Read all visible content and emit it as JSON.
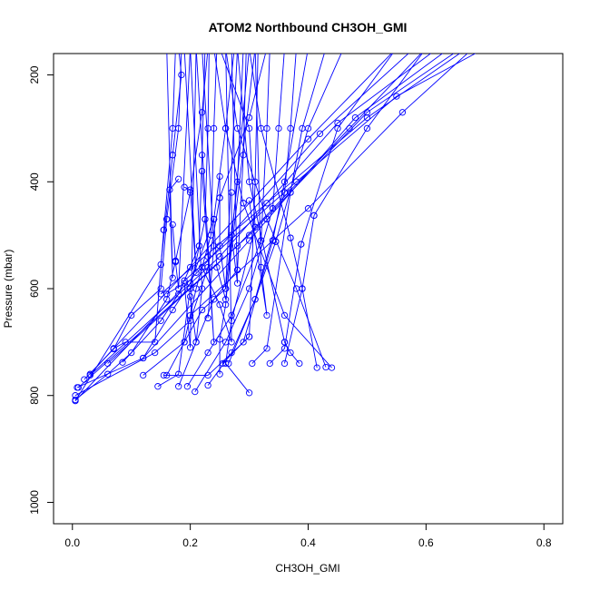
{
  "chart_data": {
    "type": "line",
    "title": "ATOM2 Northbound CH3OH_GMI",
    "xlabel": "CH3OH_GMI",
    "ylabel": "Pressure (mbar)",
    "xlim": [
      -0.032,
      0.832
    ],
    "ylim": [
      1040,
      160
    ],
    "y_reversed": true,
    "x_ticks": [
      0.0,
      0.2,
      0.4,
      0.6,
      0.8
    ],
    "x_tick_labels": [
      "0.0",
      "0.2",
      "0.4",
      "0.6",
      "0.8"
    ],
    "y_ticks": [
      200,
      400,
      600,
      800,
      1000
    ],
    "y_tick_labels": [
      "200",
      "400",
      "600",
      "800",
      "1000"
    ],
    "series_color": "#0000ff",
    "marker": "open-circle",
    "grid": false,
    "legend": "none",
    "profiles": [
      {
        "x": [
          0.005,
          0.15,
          0.17
        ],
        "y": [
          810,
          555,
          350
        ]
      },
      {
        "x": [
          0.17,
          0.185,
          0.18
        ],
        "y": [
          350,
          200,
          150
        ]
      },
      {
        "x": [
          0.005,
          0.06,
          0.1,
          0.16,
          0.175
        ],
        "y": [
          808,
          760,
          720,
          620,
          548
        ]
      },
      {
        "x": [
          0.175,
          0.2,
          0.22,
          0.23
        ],
        "y": [
          548,
          420,
          270,
          150
        ]
      },
      {
        "x": [
          0.008,
          0.12,
          0.17,
          0.2,
          0.24
        ],
        "y": [
          785,
          730,
          640,
          590,
          470
        ]
      },
      {
        "x": [
          0.24,
          0.26,
          0.275
        ],
        "y": [
          470,
          300,
          150
        ]
      },
      {
        "x": [
          0.005,
          0.14,
          0.2,
          0.23,
          0.25
        ],
        "y": [
          800,
          720,
          660,
          560,
          430
        ]
      },
      {
        "x": [
          0.25,
          0.3,
          0.33
        ],
        "y": [
          430,
          280,
          150
        ]
      },
      {
        "x": [
          0.03,
          0.07,
          0.09,
          0.14,
          0.155
        ],
        "y": [
          760,
          712,
          700,
          700,
          490
        ]
      },
      {
        "x": [
          0.155,
          0.17,
          0.175
        ],
        "y": [
          490,
          300,
          150
        ]
      },
      {
        "x": [
          0.02,
          0.07,
          0.1,
          0.15,
          0.16
        ],
        "y": [
          770,
          713,
          650,
          600,
          470
        ]
      },
      {
        "x": [
          0.16,
          0.18,
          0.185
        ],
        "y": [
          470,
          300,
          150
        ]
      },
      {
        "x": [
          0.085,
          0.15,
          0.18,
          0.215
        ],
        "y": [
          738,
          660,
          610,
          520
        ]
      },
      {
        "x": [
          0.215,
          0.22,
          0.225
        ],
        "y": [
          520,
          350,
          150
        ]
      },
      {
        "x": [
          0.12,
          0.19,
          0.21,
          0.235
        ],
        "y": [
          762,
          700,
          600,
          500
        ]
      },
      {
        "x": [
          0.235,
          0.24,
          0.245
        ],
        "y": [
          500,
          300,
          150
        ]
      },
      {
        "x": [
          0.145,
          0.18,
          0.2,
          0.225
        ],
        "y": [
          783,
          760,
          600,
          470
        ]
      },
      {
        "x": [
          0.225,
          0.23,
          0.232
        ],
        "y": [
          470,
          300,
          150
        ]
      },
      {
        "x": [
          0.16,
          0.19,
          0.22,
          0.26
        ],
        "y": [
          762,
          700,
          640,
          600
        ]
      },
      {
        "x": [
          0.26,
          0.28,
          0.29
        ],
        "y": [
          600,
          400,
          150
        ]
      },
      {
        "x": [
          0.155,
          0.23,
          0.3
        ],
        "y": [
          762,
          762,
          690
        ]
      },
      {
        "x": [
          0.3,
          0.31,
          0.315
        ],
        "y": [
          690,
          400,
          150
        ]
      },
      {
        "x": [
          0.18,
          0.21,
          0.24,
          0.28
        ],
        "y": [
          783,
          700,
          620,
          565
        ]
      },
      {
        "x": [
          0.28,
          0.29,
          0.295
        ],
        "y": [
          565,
          350,
          150
        ]
      },
      {
        "x": [
          0.195,
          0.23,
          0.27,
          0.32
        ],
        "y": [
          783,
          720,
          650,
          510
        ]
      },
      {
        "x": [
          0.32,
          0.33,
          0.335
        ],
        "y": [
          510,
          300,
          150
        ]
      },
      {
        "x": [
          0.208,
          0.26,
          0.3,
          0.34
        ],
        "y": [
          793,
          700,
          600,
          450
        ]
      },
      {
        "x": [
          0.34,
          0.35,
          0.36
        ],
        "y": [
          450,
          300,
          150
        ]
      },
      {
        "x": [
          0.23,
          0.27,
          0.31,
          0.36
        ],
        "y": [
          781,
          720,
          620,
          420
        ]
      },
      {
        "x": [
          0.36,
          0.37,
          0.38
        ],
        "y": [
          420,
          300,
          150
        ]
      },
      {
        "x": [
          0.3,
          0.26,
          0.27,
          0.31
        ],
        "y": [
          795,
          740,
          660,
          485
        ]
      },
      {
        "x": [
          0.31,
          0.3,
          0.25
        ],
        "y": [
          485,
          300,
          150
        ]
      },
      {
        "x": [
          0.255,
          0.29,
          0.34
        ],
        "y": [
          740,
          700,
          510
        ]
      },
      {
        "x": [
          0.34,
          0.36,
          0.4
        ],
        "y": [
          510,
          400,
          150
        ]
      },
      {
        "x": [
          0.265,
          0.31,
          0.345
        ],
        "y": [
          740,
          620,
          512
        ]
      },
      {
        "x": [
          0.345,
          0.4,
          0.46
        ],
        "y": [
          512,
          300,
          150
        ]
      },
      {
        "x": [
          0.305,
          0.33,
          0.37
        ],
        "y": [
          740,
          712,
          420
        ]
      },
      {
        "x": [
          0.37,
          0.39,
          0.43
        ],
        "y": [
          420,
          300,
          150
        ]
      },
      {
        "x": [
          0.335,
          0.36,
          0.388
        ],
        "y": [
          740,
          712,
          517
        ]
      },
      {
        "x": [
          0.388,
          0.45,
          0.55
        ],
        "y": [
          517,
          300,
          150
        ]
      },
      {
        "x": [
          0.36,
          0.39,
          0.41
        ],
        "y": [
          740,
          600,
          463
        ]
      },
      {
        "x": [
          0.41,
          0.5,
          0.6
        ],
        "y": [
          463,
          300,
          150
        ]
      },
      {
        "x": [
          0.385,
          0.37,
          0.36
        ],
        "y": [
          740,
          720,
          700
        ]
      },
      {
        "x": [
          0.36,
          0.3,
          0.28
        ],
        "y": [
          700,
          400,
          150
        ]
      },
      {
        "x": [
          0.415,
          0.39,
          0.37
        ],
        "y": [
          748,
          600,
          505
        ]
      },
      {
        "x": [
          0.37,
          0.32,
          0.3
        ],
        "y": [
          505,
          300,
          150
        ]
      },
      {
        "x": [
          0.43,
          0.38,
          0.33
        ],
        "y": [
          747,
          600,
          470
        ]
      },
      {
        "x": [
          0.33,
          0.28,
          0.26
        ],
        "y": [
          470,
          300,
          150
        ]
      },
      {
        "x": [
          0.44,
          0.36,
          0.29
        ],
        "y": [
          748,
          650,
          440
        ]
      },
      {
        "x": [
          0.29,
          0.26,
          0.24
        ],
        "y": [
          440,
          300,
          150
        ]
      },
      {
        "x": [
          0.07,
          0.2,
          0.4,
          0.55
        ],
        "y": [
          712,
          560,
          320,
          150
        ]
      },
      {
        "x": [
          0.03,
          0.25,
          0.45,
          0.62
        ],
        "y": [
          762,
          540,
          290,
          150
        ]
      },
      {
        "x": [
          0.005,
          0.22,
          0.42,
          0.58
        ],
        "y": [
          810,
          560,
          310,
          150
        ]
      },
      {
        "x": [
          0.01,
          0.3,
          0.5,
          0.66
        ],
        "y": [
          785,
          500,
          270,
          150
        ]
      },
      {
        "x": [
          0.12,
          0.3,
          0.48,
          0.64
        ],
        "y": [
          730,
          510,
          280,
          150
        ]
      },
      {
        "x": [
          0.15,
          0.33,
          0.5,
          0.67
        ],
        "y": [
          610,
          440,
          280,
          150
        ]
      },
      {
        "x": [
          0.19,
          0.38,
          0.55,
          0.7
        ],
        "y": [
          585,
          400,
          240,
          150
        ]
      },
      {
        "x": [
          0.2,
          0.4,
          0.56,
          0.68
        ],
        "y": [
          650,
          450,
          270,
          150
        ]
      },
      {
        "x": [
          0.06,
          0.28,
          0.47,
          0.6
        ],
        "y": [
          740,
          520,
          300,
          150
        ]
      },
      {
        "x": [
          0.16,
          0.19,
          0.2,
          0.21
        ],
        "y": [
          610,
          590,
          710,
          150
        ]
      },
      {
        "x": [
          0.2,
          0.21,
          0.22,
          0.2
        ],
        "y": [
          615,
          700,
          600,
          150
        ]
      },
      {
        "x": [
          0.22,
          0.25,
          0.27,
          0.26
        ],
        "y": [
          560,
          630,
          700,
          150
        ]
      },
      {
        "x": [
          0.23,
          0.23,
          0.24,
          0.22
        ],
        "y": [
          655,
          655,
          520,
          150
        ]
      },
      {
        "x": [
          0.18,
          0.165,
          0.17,
          0.16
        ],
        "y": [
          395,
          415,
          580,
          150
        ]
      },
      {
        "x": [
          0.19,
          0.2,
          0.21,
          0.19
        ],
        "y": [
          410,
          415,
          570,
          150
        ]
      },
      {
        "x": [
          0.22,
          0.23,
          0.24,
          0.21
        ],
        "y": [
          380,
          540,
          700,
          150
        ]
      },
      {
        "x": [
          0.25,
          0.25,
          0.26,
          0.28
        ],
        "y": [
          390,
          520,
          600,
          150
        ]
      },
      {
        "x": [
          0.27,
          0.27,
          0.28,
          0.27
        ],
        "y": [
          420,
          500,
          590,
          150
        ]
      },
      {
        "x": [
          0.3,
          0.33,
          0.32,
          0.31
        ],
        "y": [
          435,
          650,
          560,
          150
        ]
      },
      {
        "x": [
          0.25,
          0.25,
          0.26,
          0.3
        ],
        "y": [
          760,
          695,
          630,
          150
        ]
      },
      {
        "x": [
          0.17,
          0.175,
          0.18,
          0.2
        ],
        "y": [
          480,
          550,
          600,
          150
        ]
      },
      {
        "x": [
          0.24,
          0.245,
          0.26,
          0.31
        ],
        "y": [
          470,
          560,
          620,
          150
        ]
      }
    ]
  }
}
